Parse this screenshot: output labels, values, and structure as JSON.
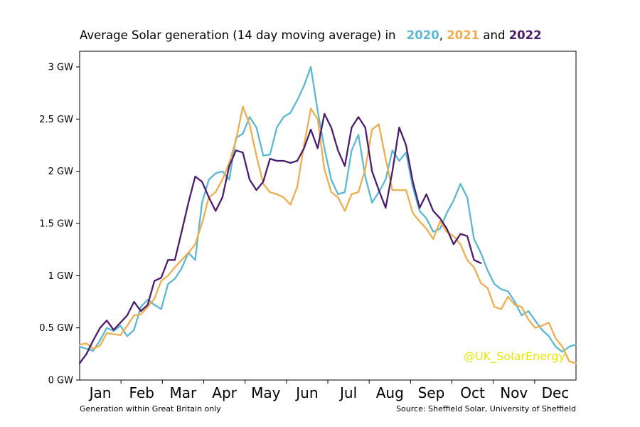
{
  "title": {
    "prefix": "Average Solar generation (14 day moving average) in",
    "year_a": "2020",
    "sep": ",",
    "year_b": "2021",
    "conj": "and",
    "year_c": "2022"
  },
  "footer": {
    "left": "Generation within Great Britain only",
    "right": "Source: Sheffield Solar, University of Sheffield"
  },
  "watermark": "@UK_SolarEnergy",
  "colors": {
    "2020": "#5bb8d4",
    "2021": "#f0ad4e",
    "2022": "#4b1d6e",
    "watermark": "#e8e800"
  },
  "chart_data": {
    "type": "line",
    "title": "Average Solar generation (14 day moving average) in 2020, 2021 and 2022",
    "xlabel": "",
    "ylabel": "",
    "xlim": [
      0,
      365
    ],
    "ylim": [
      0,
      3.15
    ],
    "y_unit": "GW",
    "yticks": [
      {
        "value": 0,
        "label": "0 GW"
      },
      {
        "value": 0.5,
        "label": "0.5 GW"
      },
      {
        "value": 1,
        "label": "1 GW"
      },
      {
        "value": 1.5,
        "label": "1.5 GW"
      },
      {
        "value": 2,
        "label": "2 GW"
      },
      {
        "value": 2.5,
        "label": "2.5 GW"
      },
      {
        "value": 3,
        "label": "3 GW"
      }
    ],
    "month_labels": [
      "Jan",
      "Feb",
      "Mar",
      "Apr",
      "May",
      "Jun",
      "Jul",
      "Aug",
      "Sep",
      "Oct",
      "Nov",
      "Dec"
    ],
    "grid": false,
    "legend": "title",
    "series": [
      {
        "name": "2020",
        "x": [
          0,
          5,
          10,
          15,
          20,
          25,
          30,
          35,
          40,
          45,
          50,
          55,
          60,
          65,
          70,
          75,
          80,
          85,
          90,
          95,
          100,
          105,
          110,
          115,
          120,
          125,
          130,
          135,
          140,
          145,
          150,
          155,
          160,
          165,
          170,
          175,
          180,
          185,
          190,
          195,
          200,
          205,
          210,
          215,
          220,
          225,
          230,
          235,
          240,
          245,
          250,
          255,
          260,
          265,
          270,
          275,
          280,
          285,
          290,
          295,
          300,
          305,
          310,
          315,
          320,
          325,
          330,
          335,
          340,
          345,
          350,
          355,
          360,
          365
        ],
        "values": [
          0.32,
          0.3,
          0.28,
          0.38,
          0.5,
          0.47,
          0.52,
          0.42,
          0.48,
          0.7,
          0.77,
          0.72,
          0.68,
          0.92,
          0.97,
          1.07,
          1.22,
          1.15,
          1.7,
          1.92,
          1.98,
          2.0,
          1.92,
          2.32,
          2.36,
          2.52,
          2.42,
          2.15,
          2.16,
          2.42,
          2.52,
          2.56,
          2.68,
          2.82,
          3.0,
          2.58,
          2.22,
          1.92,
          1.78,
          1.8,
          2.2,
          2.35,
          1.95,
          1.7,
          1.8,
          1.92,
          2.2,
          2.1,
          2.18,
          1.85,
          1.62,
          1.55,
          1.42,
          1.45,
          1.6,
          1.72,
          1.88,
          1.75,
          1.35,
          1.22,
          1.05,
          0.92,
          0.87,
          0.85,
          0.75,
          0.62,
          0.66,
          0.57,
          0.48,
          0.42,
          0.32,
          0.27,
          0.32,
          0.34
        ]
      },
      {
        "name": "2021",
        "x": [
          0,
          5,
          10,
          15,
          20,
          25,
          30,
          35,
          40,
          45,
          50,
          55,
          60,
          65,
          70,
          75,
          80,
          85,
          90,
          95,
          100,
          105,
          110,
          115,
          120,
          125,
          130,
          135,
          140,
          145,
          150,
          155,
          160,
          165,
          170,
          175,
          180,
          185,
          190,
          195,
          200,
          205,
          210,
          215,
          220,
          225,
          230,
          235,
          240,
          245,
          250,
          255,
          260,
          265,
          270,
          275,
          280,
          285,
          290,
          295,
          300,
          305,
          310,
          315,
          320,
          325,
          330,
          335,
          340,
          345,
          350,
          355,
          360,
          365
        ],
        "values": [
          0.34,
          0.35,
          0.3,
          0.33,
          0.45,
          0.44,
          0.43,
          0.52,
          0.62,
          0.63,
          0.7,
          0.78,
          0.95,
          1.0,
          1.08,
          1.15,
          1.22,
          1.3,
          1.5,
          1.75,
          1.8,
          1.92,
          2.08,
          2.3,
          2.62,
          2.45,
          2.15,
          1.88,
          1.8,
          1.78,
          1.75,
          1.68,
          1.85,
          2.25,
          2.6,
          2.5,
          2.02,
          1.8,
          1.75,
          1.62,
          1.78,
          1.8,
          2.02,
          2.4,
          2.45,
          2.12,
          1.82,
          1.82,
          1.82,
          1.6,
          1.52,
          1.45,
          1.35,
          1.52,
          1.42,
          1.38,
          1.3,
          1.15,
          1.08,
          0.93,
          0.88,
          0.7,
          0.68,
          0.8,
          0.72,
          0.7,
          0.58,
          0.5,
          0.52,
          0.55,
          0.4,
          0.32,
          0.18,
          0.16
        ]
      },
      {
        "name": "2022",
        "x": [
          0,
          5,
          10,
          15,
          20,
          25,
          30,
          35,
          40,
          45,
          50,
          55,
          60,
          65,
          70,
          75,
          80,
          85,
          90,
          95,
          100,
          105,
          110,
          115,
          120,
          125,
          130,
          135,
          140,
          145,
          150,
          155,
          160,
          165,
          170,
          175,
          180,
          185,
          190,
          195,
          200,
          205,
          210,
          215,
          220,
          225,
          230,
          235,
          240,
          245,
          250,
          255,
          260,
          265,
          270,
          275,
          280,
          285,
          290,
          295
        ],
        "values": [
          0.16,
          0.25,
          0.38,
          0.5,
          0.57,
          0.48,
          0.55,
          0.62,
          0.75,
          0.66,
          0.72,
          0.95,
          0.98,
          1.15,
          1.15,
          1.42,
          1.7,
          1.95,
          1.9,
          1.75,
          1.62,
          1.75,
          2.05,
          2.2,
          2.18,
          1.92,
          1.82,
          1.9,
          2.12,
          2.1,
          2.1,
          2.08,
          2.1,
          2.22,
          2.4,
          2.22,
          2.55,
          2.42,
          2.2,
          2.05,
          2.42,
          2.52,
          2.42,
          2.0,
          1.82,
          1.65,
          2.0,
          2.42,
          2.25,
          1.9,
          1.65,
          1.78,
          1.62,
          1.55,
          1.45,
          1.3,
          1.4,
          1.38,
          1.15,
          1.12
        ]
      }
    ]
  }
}
